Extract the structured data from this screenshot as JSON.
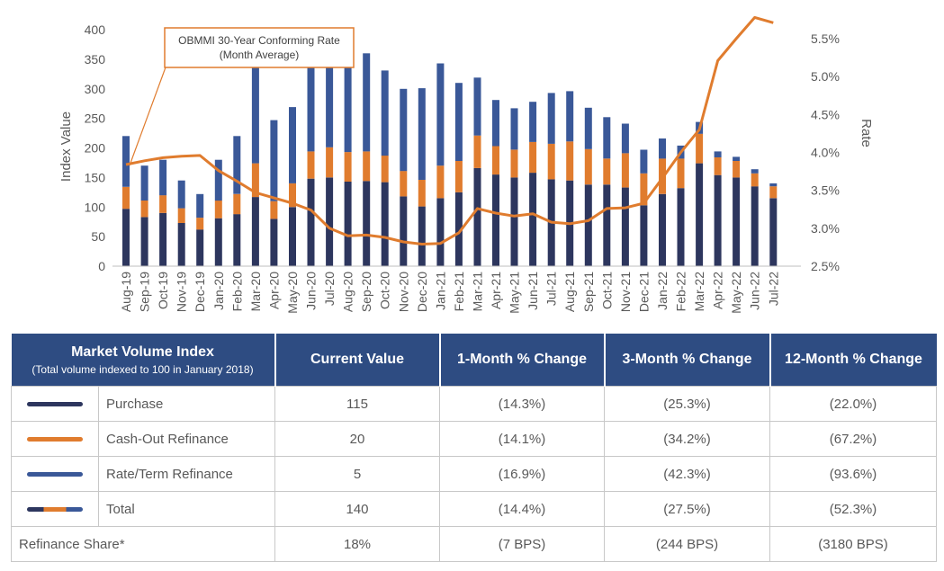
{
  "chart_data": {
    "type": "bar",
    "stacked": true,
    "categories": [
      "Aug-19",
      "Sep-19",
      "Oct-19",
      "Nov-19",
      "Dec-19",
      "Jan-20",
      "Feb-20",
      "Mar-20",
      "Apr-20",
      "May-20",
      "Jun-20",
      "Jul-20",
      "Aug-20",
      "Sep-20",
      "Oct-20",
      "Nov-20",
      "Dec-20",
      "Jan-21",
      "Feb-21",
      "Mar-21",
      "Apr-21",
      "May-21",
      "Jun-21",
      "Jul-21",
      "Aug-21",
      "Sep-21",
      "Oct-21",
      "Nov-21",
      "Dec-21",
      "Jan-22",
      "Feb-22",
      "Mar-22",
      "Apr-22",
      "May-22",
      "Jun-22",
      "Jul-22"
    ],
    "ylabel": "Index Value",
    "ylim": [
      0,
      400
    ],
    "yticks": [
      "0",
      "50",
      "100",
      "150",
      "200",
      "250",
      "300",
      "350",
      "400"
    ],
    "y2label": "Rate",
    "y2lim": [
      2.5,
      5.75
    ],
    "y2ticks": [
      "2.5%",
      "3.0%",
      "3.5%",
      "4.0%",
      "4.5%",
      "5.0%",
      "5.5%"
    ],
    "y2tick_values": [
      2.5,
      3.0,
      3.5,
      4.0,
      4.5,
      5.0,
      5.5
    ],
    "series": [
      {
        "name": "Purchase",
        "color": "#2d365e",
        "values": [
          97,
          83,
          90,
          73,
          62,
          81,
          88,
          117,
          80,
          100,
          148,
          150,
          143,
          144,
          142,
          118,
          101,
          115,
          125,
          166,
          155,
          150,
          158,
          147,
          145,
          138,
          138,
          133,
          103,
          122,
          132,
          174,
          154,
          150,
          135,
          115
        ]
      },
      {
        "name": "Cash-Out Refinance",
        "color": "#e07c2e",
        "values": [
          37,
          28,
          30,
          25,
          20,
          30,
          34,
          57,
          30,
          40,
          46,
          51,
          50,
          50,
          45,
          43,
          45,
          55,
          53,
          55,
          48,
          47,
          52,
          60,
          66,
          60,
          44,
          58,
          54,
          60,
          50,
          50,
          30,
          28,
          22,
          20
        ]
      },
      {
        "name": "Rate/Term Refinance",
        "color": "#3a5898",
        "values": [
          86,
          59,
          60,
          47,
          40,
          69,
          98,
          166,
          137,
          129,
          176,
          166,
          173,
          166,
          144,
          139,
          155,
          173,
          132,
          98,
          78,
          70,
          68,
          86,
          85,
          70,
          70,
          50,
          40,
          34,
          22,
          20,
          10,
          7,
          7,
          5
        ]
      },
      {
        "name": "OBMMI 30-Year Conforming Rate",
        "color": "#e07c2e",
        "axis": "right",
        "values": [
          3.84,
          3.89,
          3.93,
          3.95,
          3.96,
          3.76,
          3.62,
          3.47,
          3.4,
          3.33,
          3.24,
          3.0,
          2.9,
          2.91,
          2.88,
          2.82,
          2.79,
          2.8,
          2.94,
          3.26,
          3.2,
          3.16,
          3.19,
          3.08,
          3.06,
          3.1,
          3.26,
          3.27,
          3.33,
          3.66,
          4.0,
          4.3,
          5.21,
          5.5,
          5.78,
          5.71
        ]
      }
    ],
    "annotation": {
      "line1": "OBMMI 30-Year Conforming Rate",
      "line2": "(Month Average)"
    },
    "grid": false,
    "legend": "table-below"
  },
  "table": {
    "header": {
      "index_title": "Market Volume Index",
      "index_subtitle": "(Total volume indexed to 100 in January 2018)",
      "current": "Current Value",
      "m1": "1-Month % Change",
      "m3": "3-Month % Change",
      "m12": "12-Month % Change"
    },
    "rows": [
      {
        "label": "Purchase",
        "color": "#2d365e",
        "current": "115",
        "m1": "(14.3%)",
        "m3": "(25.3%)",
        "m12": "(22.0%)"
      },
      {
        "label": "Cash-Out Refinance",
        "color": "#e07c2e",
        "current": "20",
        "m1": "(14.1%)",
        "m3": "(34.2%)",
        "m12": "(67.2%)"
      },
      {
        "label": "Rate/Term Refinance",
        "color": "#3a5898",
        "current": "5",
        "m1": "(16.9%)",
        "m3": "(42.3%)",
        "m12": "(93.6%)"
      },
      {
        "label": "Total",
        "color": "multi",
        "current": "140",
        "m1": "(14.4%)",
        "m3": "(27.5%)",
        "m12": "(52.3%)"
      }
    ],
    "refi": {
      "label": "Refinance Share*",
      "current": "18%",
      "m1": "(7 BPS)",
      "m3": "(244 BPS)",
      "m12": "(3180 BPS)"
    }
  }
}
